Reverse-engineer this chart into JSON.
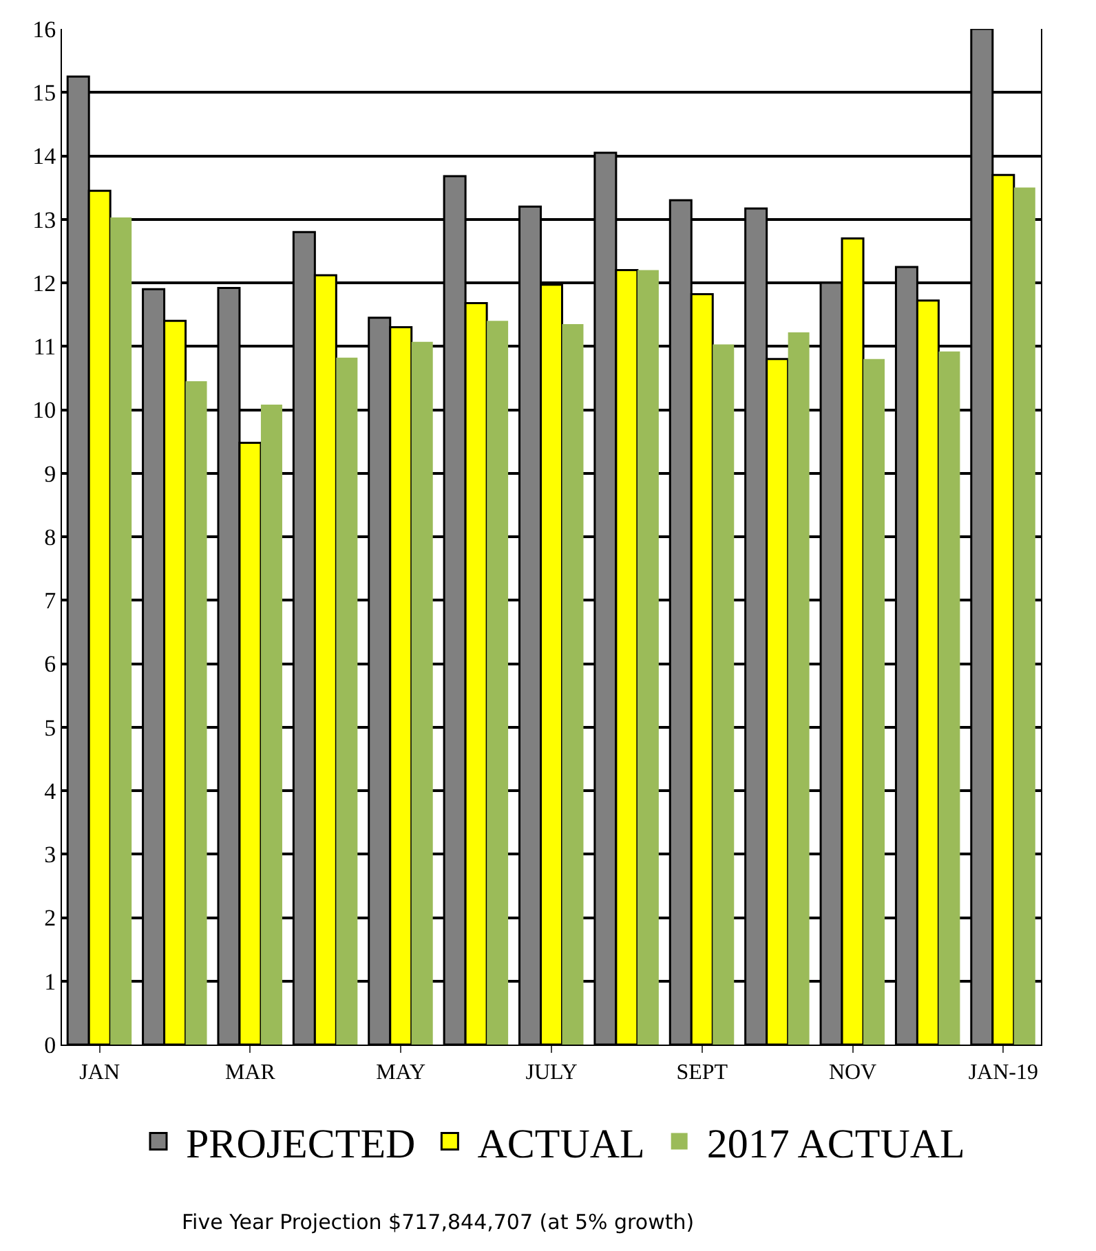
{
  "chart_data": {
    "type": "bar",
    "categories": [
      "JAN",
      null,
      "MAR",
      null,
      "MAY",
      null,
      "JULY",
      null,
      "SEPT",
      null,
      "NOV",
      null,
      "JAN-19"
    ],
    "series": [
      {
        "name": "PROJECTED",
        "color": "#808080",
        "values": [
          15.25,
          11.9,
          11.92,
          12.8,
          11.45,
          13.68,
          13.2,
          14.05,
          13.3,
          13.17,
          12.0,
          12.25,
          16.0
        ]
      },
      {
        "name": "ACTUAL",
        "color": "#ffff00",
        "values": [
          13.45,
          11.4,
          9.48,
          12.12,
          11.3,
          11.68,
          11.97,
          12.2,
          11.82,
          10.8,
          12.7,
          11.72,
          13.7
        ]
      },
      {
        "name": "2017 ACTUAL",
        "color": "#9bbb59",
        "values": [
          13.03,
          10.45,
          10.08,
          10.82,
          11.07,
          11.4,
          11.35,
          12.2,
          11.03,
          11.22,
          10.8,
          10.92,
          13.5
        ]
      }
    ],
    "ylim": [
      0,
      16
    ],
    "yticks": [
      0,
      1,
      2,
      3,
      4,
      5,
      6,
      7,
      8,
      9,
      10,
      11,
      12,
      13,
      14,
      15,
      16
    ],
    "grid": "y",
    "legend": "bottom",
    "annotations": [
      "Five Year Projection $717,844,707 (at 5% growth)"
    ]
  }
}
